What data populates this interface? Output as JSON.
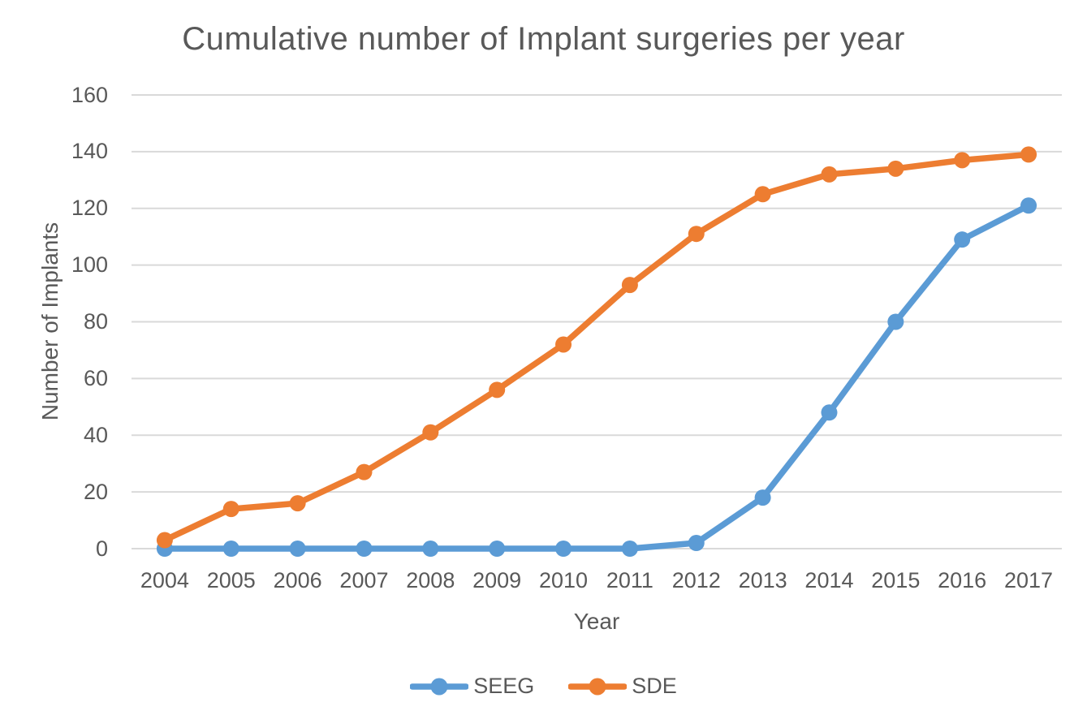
{
  "chart_data": {
    "type": "line",
    "title": "Cumulative number of Implant surgeries per year",
    "xlabel": "Year",
    "ylabel": "Number of Implants",
    "categories": [
      "2004",
      "2005",
      "2006",
      "2007",
      "2008",
      "2009",
      "2010",
      "2011",
      "2012",
      "2013",
      "2014",
      "2015",
      "2016",
      "2017"
    ],
    "series": [
      {
        "name": "SEEG",
        "color": "#5B9BD5",
        "values": [
          0,
          0,
          0,
          0,
          0,
          0,
          0,
          0,
          2,
          18,
          48,
          80,
          109,
          121
        ]
      },
      {
        "name": "SDE",
        "color": "#ED7D31",
        "values": [
          3,
          14,
          16,
          27,
          41,
          56,
          72,
          93,
          111,
          125,
          132,
          134,
          137,
          139
        ]
      }
    ],
    "ylim": [
      0,
      160
    ],
    "ytick_step": 20,
    "grid": "horizontal",
    "gridline_color": "#D9D9D9",
    "text_color": "#595959",
    "background": "#FFFFFF",
    "legend_position": "bottom"
  }
}
